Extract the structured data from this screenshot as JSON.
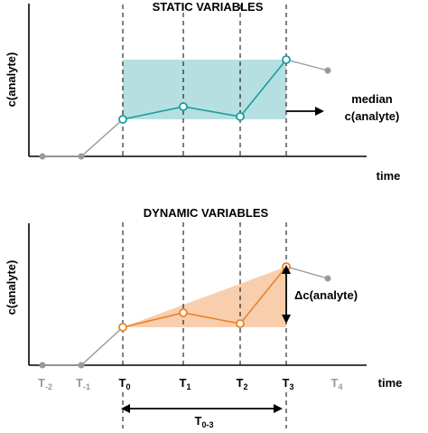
{
  "top_panel": {
    "title": "STATIC VARIABLES",
    "y_axis_label": "c(analyte)",
    "x_axis_label": "time",
    "annotation_line1": "median",
    "annotation_line2": "c(analyte)",
    "colors": {
      "line": "#1a9e9a",
      "band": "#a9d9dd",
      "pre_line": "#999999"
    }
  },
  "bottom_panel": {
    "title": "DYNAMIC VARIABLES",
    "y_axis_label": "c(analyte)",
    "x_axis_label": "time",
    "delta_label": "Δc(analyte)",
    "colors": {
      "line": "#e8822a",
      "fill": "#f8c9a4",
      "pre_line": "#999999"
    }
  },
  "time_points": [
    {
      "base": "T",
      "sub": "-2",
      "color": "#999999"
    },
    {
      "base": "T",
      "sub": "-1",
      "color": "#999999"
    },
    {
      "base": "T",
      "sub": "0",
      "color": "#000000"
    },
    {
      "base": "T",
      "sub": "1",
      "color": "#000000"
    },
    {
      "base": "T",
      "sub": "2",
      "color": "#000000"
    },
    {
      "base": "T",
      "sub": "3",
      "color": "#000000"
    },
    {
      "base": "T",
      "sub": "4",
      "color": "#999999"
    }
  ],
  "span_label": {
    "base": "T",
    "sub": "0-3"
  }
}
